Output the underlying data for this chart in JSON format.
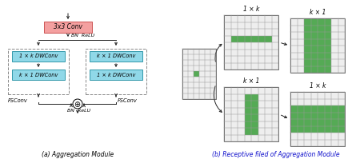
{
  "bg_color": "#ffffff",
  "title_a": "(a) Aggregation Module",
  "title_b": "(b) Receptive filed of Aggregation Module",
  "conv3x3_text": "3x3 Conv",
  "box1_text": "1 × k DWConv",
  "box2_text": "k × 1 DWConv",
  "box3_text": "k × 1 DWConv",
  "box4_text": "1 × k DWConv",
  "bn_relu1": "BN  ReLU",
  "bn_relu2": "BN  ReLU",
  "fsconv_l": "FSConv",
  "fsconv_r": "FSConv",
  "label_1xk_top": "1 × k",
  "label_kx1_top": "k × 1",
  "label_kx1_bot": "k × 1",
  "label_1xk_bot": "1 × k",
  "conv_color": "#f4a0a0",
  "dw_color": "#90d8e8",
  "green_color": "#55aa55",
  "arrow_color": "#222222"
}
